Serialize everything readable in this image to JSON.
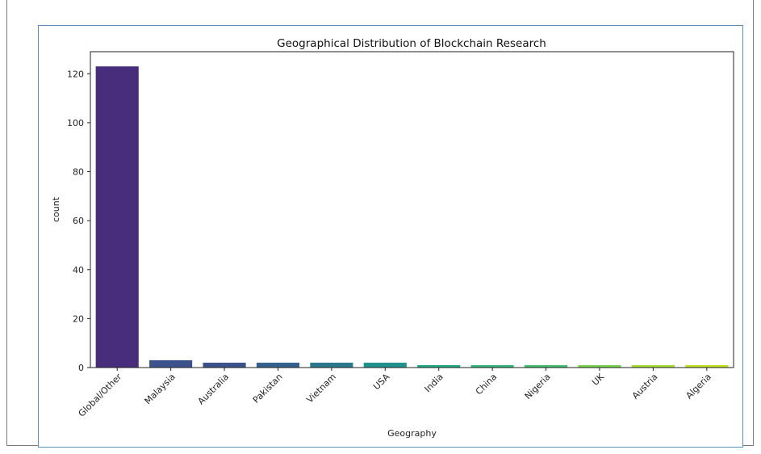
{
  "chart_data": {
    "type": "bar",
    "title": "Geographical Distribution of Blockchain Research",
    "xlabel": "Geography",
    "ylabel": "count",
    "categories": [
      "Global/Other",
      "Malaysia",
      "Australia",
      "Pakistan",
      "Vietnam",
      "USA",
      "India",
      "China",
      "Nigeria",
      "UK",
      "Austria",
      "Algeria"
    ],
    "values": [
      123,
      3,
      2,
      2,
      2,
      2,
      1,
      1,
      1,
      1,
      1,
      1
    ],
    "colors": [
      "#472d7b",
      "#3b528b",
      "#3b528b",
      "#33638d",
      "#2a788e",
      "#21918c",
      "#22a884",
      "#35b779",
      "#44bf70",
      "#7ad151",
      "#a5db36",
      "#bddf26"
    ],
    "yticks": [
      0,
      20,
      40,
      60,
      80,
      100,
      120
    ],
    "ylim": [
      0,
      129
    ],
    "grid": false
  }
}
